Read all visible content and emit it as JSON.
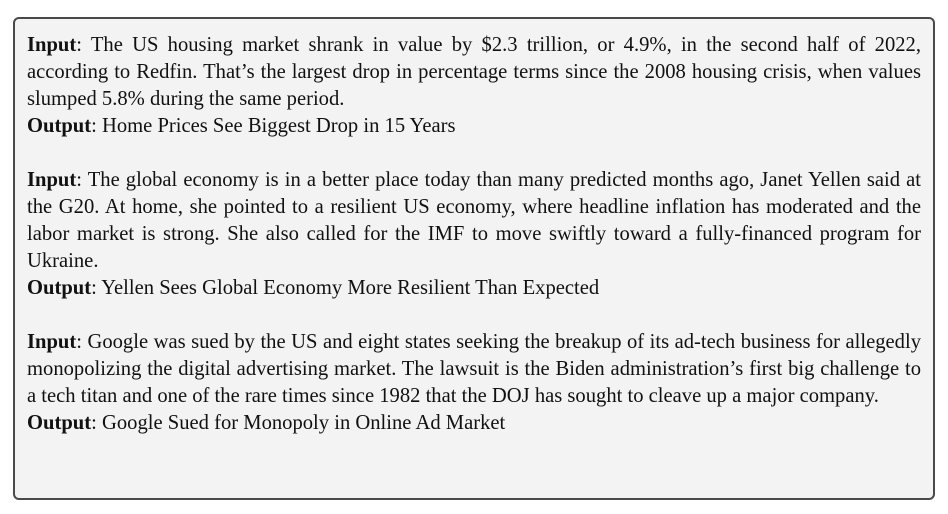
{
  "labels": {
    "input": "Input",
    "output": "Output"
  },
  "examples": [
    {
      "input": "The US housing market shrank in value by $2.3 trillion, or 4.9%, in the second half of 2022, according to Redfin. That’s the largest drop in percentage terms since the 2008 housing crisis, when values slumped 5.8% during the same period.",
      "output": "Home Prices See Biggest Drop in 15 Years"
    },
    {
      "input": "The global economy is in a better place today than many predicted months ago, Janet Yellen said at the G20. At home, she pointed to a resilient US economy, where headline inflation has moderated and the labor market is strong. She also called for the IMF to move swiftly toward a fully-financed program for Ukraine.",
      "output": "Yellen Sees Global Economy More Resilient Than Expected"
    },
    {
      "input": "Google was sued by the US and eight states seeking the breakup of its ad-tech business for allegedly monopolizing the digital advertising market. The lawsuit is the Biden administration’s first big challenge to a tech titan and one of the rare times since 1982 that the DOJ has sought to cleave up a major company.",
      "output": "Google Sued for Monopoly in Online Ad Market"
    }
  ]
}
